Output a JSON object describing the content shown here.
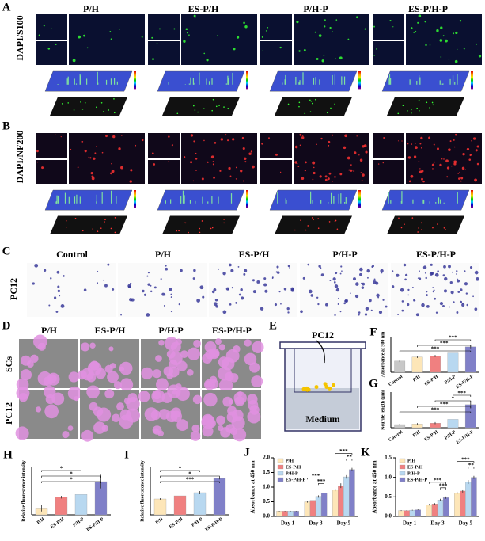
{
  "panel_A": {
    "label": "A",
    "row_label": "DAPI/S100",
    "columns": [
      "P/H",
      "ES-P/H",
      "P/H-P",
      "ES-P/H-P"
    ]
  },
  "panel_B": {
    "label": "B",
    "row_label": "DAPI/NF200"
  },
  "panel_C": {
    "label": "C",
    "row_label": "PC12",
    "columns": [
      "Control",
      "P/H",
      "ES-P/H",
      "P/H-P",
      "ES-P/H-P"
    ]
  },
  "panel_D": {
    "label": "D",
    "columns": [
      "P/H",
      "ES-P/H",
      "P/H-P",
      "ES-P/H-P"
    ],
    "rows": [
      "SCs",
      "PC12"
    ]
  },
  "panel_E": {
    "label": "E",
    "cell": "PC12",
    "medium": "Medium"
  },
  "chart_data": [
    {
      "label": "F",
      "type": "bar",
      "ylabel": "Absorbance at 500 nm",
      "categories": [
        "Control",
        "P/H",
        "ES-P/H",
        "P/H-P",
        "ES-P/H-P"
      ],
      "values": [
        0.22,
        0.3,
        0.32,
        0.38,
        0.5
      ],
      "errors": [
        0.02,
        0.02,
        0.02,
        0.03,
        0.03
      ],
      "colors": [
        "#c8c8c8",
        "#fde6b8",
        "#f08080",
        "#b8d8f0",
        "#8080c8"
      ],
      "ylim": [
        0,
        0.7
      ],
      "significance": [
        {
          "from": 2,
          "to": 4,
          "label": "***"
        },
        {
          "from": 1,
          "to": 4,
          "label": "***"
        },
        {
          "from": 0,
          "to": 4,
          "label": "***"
        }
      ]
    },
    {
      "label": "G",
      "type": "bar",
      "ylabel": "Neurite length (µm)",
      "categories": [
        "Control",
        "P/H",
        "ES-P/H",
        "P/H-P",
        "ES-P/H-P"
      ],
      "values": [
        15,
        18,
        22,
        40,
        110
      ],
      "errors": [
        4,
        4,
        5,
        8,
        18
      ],
      "colors": [
        "#c8c8c8",
        "#fde6b8",
        "#f08080",
        "#b8d8f0",
        "#8080c8"
      ],
      "ylim": [
        0,
        170
      ],
      "significance": [
        {
          "from": 3,
          "to": 4,
          "label": "***"
        },
        {
          "from": 2,
          "to": 4,
          "label": "*"
        },
        {
          "from": 1,
          "to": 4,
          "label": "***"
        },
        {
          "from": 0,
          "to": 4,
          "label": "***"
        }
      ]
    },
    {
      "label": "H",
      "type": "bar",
      "ylabel": "Relative fluorescence intensity",
      "categories": [
        "P/H",
        "ES-P/H",
        "P/H-P",
        "ES-P/H-P"
      ],
      "values": [
        1.0,
        2.6,
        3.0,
        4.9
      ],
      "errors": [
        0.5,
        0.2,
        0.7,
        1.0
      ],
      "colors": [
        "#fde6b8",
        "#f08080",
        "#b8d8f0",
        "#8080c8"
      ],
      "ylim": [
        0,
        7
      ],
      "significance": [
        {
          "from": 0,
          "to": 2,
          "label": "*"
        },
        {
          "from": 0,
          "to": 3,
          "label": "*"
        },
        {
          "from": 0,
          "to": 3,
          "label": "*"
        }
      ]
    },
    {
      "label": "I",
      "type": "bar",
      "ylabel": "Relative fluorescence intensity",
      "categories": [
        "P/H",
        "ES-P/H",
        "P/H-P",
        "ES-P/H-P"
      ],
      "values": [
        1.0,
        1.2,
        1.4,
        2.3
      ],
      "errors": [
        0.05,
        0.1,
        0.1,
        0.06
      ],
      "colors": [
        "#fde6b8",
        "#f08080",
        "#b8d8f0",
        "#8080c8"
      ],
      "ylim": [
        0,
        3
      ],
      "significance": [
        {
          "from": 0,
          "to": 2,
          "label": "*"
        },
        {
          "from": 0,
          "to": 3,
          "label": "*"
        },
        {
          "from": 0,
          "to": 3,
          "label": "***"
        }
      ]
    },
    {
      "label": "J",
      "type": "grouped_bar",
      "ylabel": "Absorbance at 450 nm",
      "categories": [
        "Day 1",
        "Day 3",
        "Day 5"
      ],
      "series": [
        {
          "name": "P/H",
          "color": "#fde6b8",
          "values": [
            0.18,
            0.5,
            0.9
          ],
          "errors": [
            0.01,
            0.03,
            0.04
          ]
        },
        {
          "name": "ES-P/H",
          "color": "#f08080",
          "values": [
            0.18,
            0.55,
            1.05
          ],
          "errors": [
            0.01,
            0.03,
            0.08
          ]
        },
        {
          "name": "P/H-P",
          "color": "#b8d8f0",
          "values": [
            0.18,
            0.68,
            1.35
          ],
          "errors": [
            0.01,
            0.04,
            0.06
          ]
        },
        {
          "name": "ES-P/H-P",
          "color": "#8080c8",
          "values": [
            0.18,
            0.8,
            1.6
          ],
          "errors": [
            0.01,
            0.03,
            0.06
          ]
        }
      ],
      "ylim": [
        0,
        2
      ],
      "yticks": [
        {
          "value": 0,
          "label": "0.0"
        },
        0.5,
        {
          "value": 1,
          "label": "1.0"
        },
        1.5,
        {
          "value": 2,
          "label": "2.0"
        }
      ],
      "significance": [
        {
          "category": 1,
          "from": 2,
          "to": 3,
          "label": "***"
        },
        {
          "category": 1,
          "from": 0,
          "to": 3,
          "label": "***"
        },
        {
          "category": 2,
          "from": 2,
          "to": 3,
          "label": "**"
        },
        {
          "category": 2,
          "from": 0,
          "to": 3,
          "label": "***"
        }
      ]
    },
    {
      "label": "K",
      "type": "grouped_bar",
      "ylabel": "Absorbance at 450 nm",
      "categories": [
        "Day 1",
        "Day 3",
        "Day 5"
      ],
      "series": [
        {
          "name": "P/H",
          "color": "#fde6b8",
          "values": [
            0.15,
            0.3,
            0.6
          ],
          "errors": [
            0.01,
            0.02,
            0.03
          ]
        },
        {
          "name": "ES-P/H",
          "color": "#f08080",
          "values": [
            0.15,
            0.32,
            0.65
          ],
          "errors": [
            0.01,
            0.02,
            0.04
          ]
        },
        {
          "name": "P/H-P",
          "color": "#b8d8f0",
          "values": [
            0.16,
            0.42,
            0.88
          ],
          "errors": [
            0.01,
            0.03,
            0.05
          ]
        },
        {
          "name": "ES-P/H-P",
          "color": "#8080c8",
          "values": [
            0.17,
            0.48,
            1.0
          ],
          "errors": [
            0.01,
            0.03,
            0.04
          ]
        }
      ],
      "ylim": [
        0,
        1.5
      ],
      "yticks": [
        {
          "value": 0,
          "label": "0.0"
        },
        0.5,
        {
          "value": 1,
          "label": "1.0"
        },
        1.5
      ],
      "significance": [
        {
          "category": 1,
          "from": 2,
          "to": 3,
          "label": "***"
        },
        {
          "category": 1,
          "from": 0,
          "to": 3,
          "label": "***"
        },
        {
          "category": 2,
          "from": 2,
          "to": 3,
          "label": "**"
        },
        {
          "category": 2,
          "from": 0,
          "to": 3,
          "label": "***"
        }
      ]
    }
  ]
}
